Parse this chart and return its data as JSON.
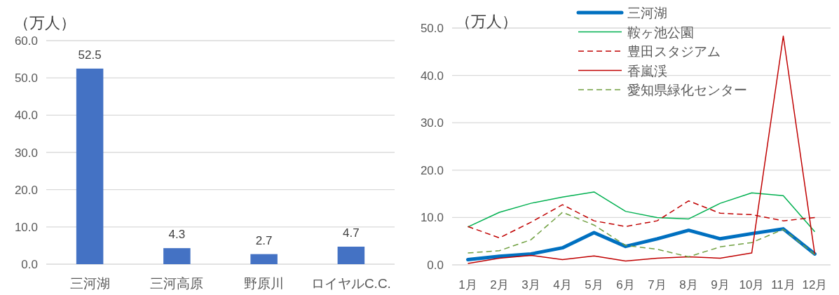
{
  "chart_data": [
    {
      "type": "bar",
      "ylabel": "（万人）",
      "categories": [
        "三河湖",
        "三河高原",
        "野原川",
        "ロイヤルC.C."
      ],
      "values": [
        52.5,
        4.3,
        2.7,
        4.7
      ],
      "color": "#4472c4",
      "data_labels": true,
      "ylim": [
        0,
        60
      ],
      "yticks": [
        {
          "value": 0,
          "label": "0.0"
        },
        {
          "value": 10,
          "label": "10.0"
        },
        {
          "value": 20,
          "label": "20.0"
        },
        {
          "value": 30,
          "label": "30.0"
        },
        {
          "value": 40,
          "label": "40.0"
        },
        {
          "value": 50,
          "label": "50.0"
        },
        {
          "value": 60,
          "label": "60.0"
        }
      ],
      "grid": "y"
    },
    {
      "type": "line",
      "ylabel": "（万人）",
      "categories": [
        "1月",
        "2月",
        "3月",
        "4月",
        "5月",
        "6月",
        "7月",
        "8月",
        "9月",
        "10月",
        "11月",
        "12月"
      ],
      "series": [
        {
          "name": "三河湖",
          "color": "#0070c0",
          "line_style": "solid",
          "values": [
            1.1,
            1.8,
            2.3,
            3.6,
            6.8,
            3.9,
            5.5,
            7.3,
            5.5,
            6.6,
            7.6,
            2.3
          ]
        },
        {
          "name": "鞍ヶ池公園",
          "color": "#00b050",
          "line_style": "solid",
          "values": [
            8.0,
            11.1,
            13.0,
            14.3,
            15.4,
            11.3,
            10.0,
            9.7,
            13.0,
            15.2,
            14.6,
            7.0
          ]
        },
        {
          "name": "豊田スタジアム",
          "color": "#c00000",
          "line_style": "dashed",
          "values": [
            8.1,
            5.7,
            9.0,
            12.7,
            9.3,
            8.1,
            9.3,
            13.5,
            10.9,
            10.6,
            9.3,
            10.0
          ]
        },
        {
          "name": "香嵐渓",
          "color": "#c00000",
          "line_style": "solid",
          "values": [
            0.3,
            1.4,
            2.0,
            1.1,
            1.9,
            0.8,
            1.4,
            1.7,
            1.4,
            2.5,
            48.3,
            2.2
          ]
        },
        {
          "name": "愛知県緑化センター",
          "color": "#70a040",
          "line_style": "dashed",
          "values": [
            2.5,
            3.0,
            5.3,
            11.1,
            8.4,
            4.1,
            3.3,
            1.7,
            3.8,
            4.7,
            7.5,
            2.2
          ]
        }
      ],
      "ylim": [
        0,
        50
      ],
      "yticks": [
        {
          "value": 0,
          "label": "0.0"
        },
        {
          "value": 10,
          "label": "10.0"
        },
        {
          "value": 20,
          "label": "20.0"
        },
        {
          "value": 30,
          "label": "30.0"
        },
        {
          "value": 40,
          "label": "40.0"
        },
        {
          "value": 50,
          "label": "50.0"
        }
      ],
      "grid": "y",
      "legend": "top"
    }
  ]
}
